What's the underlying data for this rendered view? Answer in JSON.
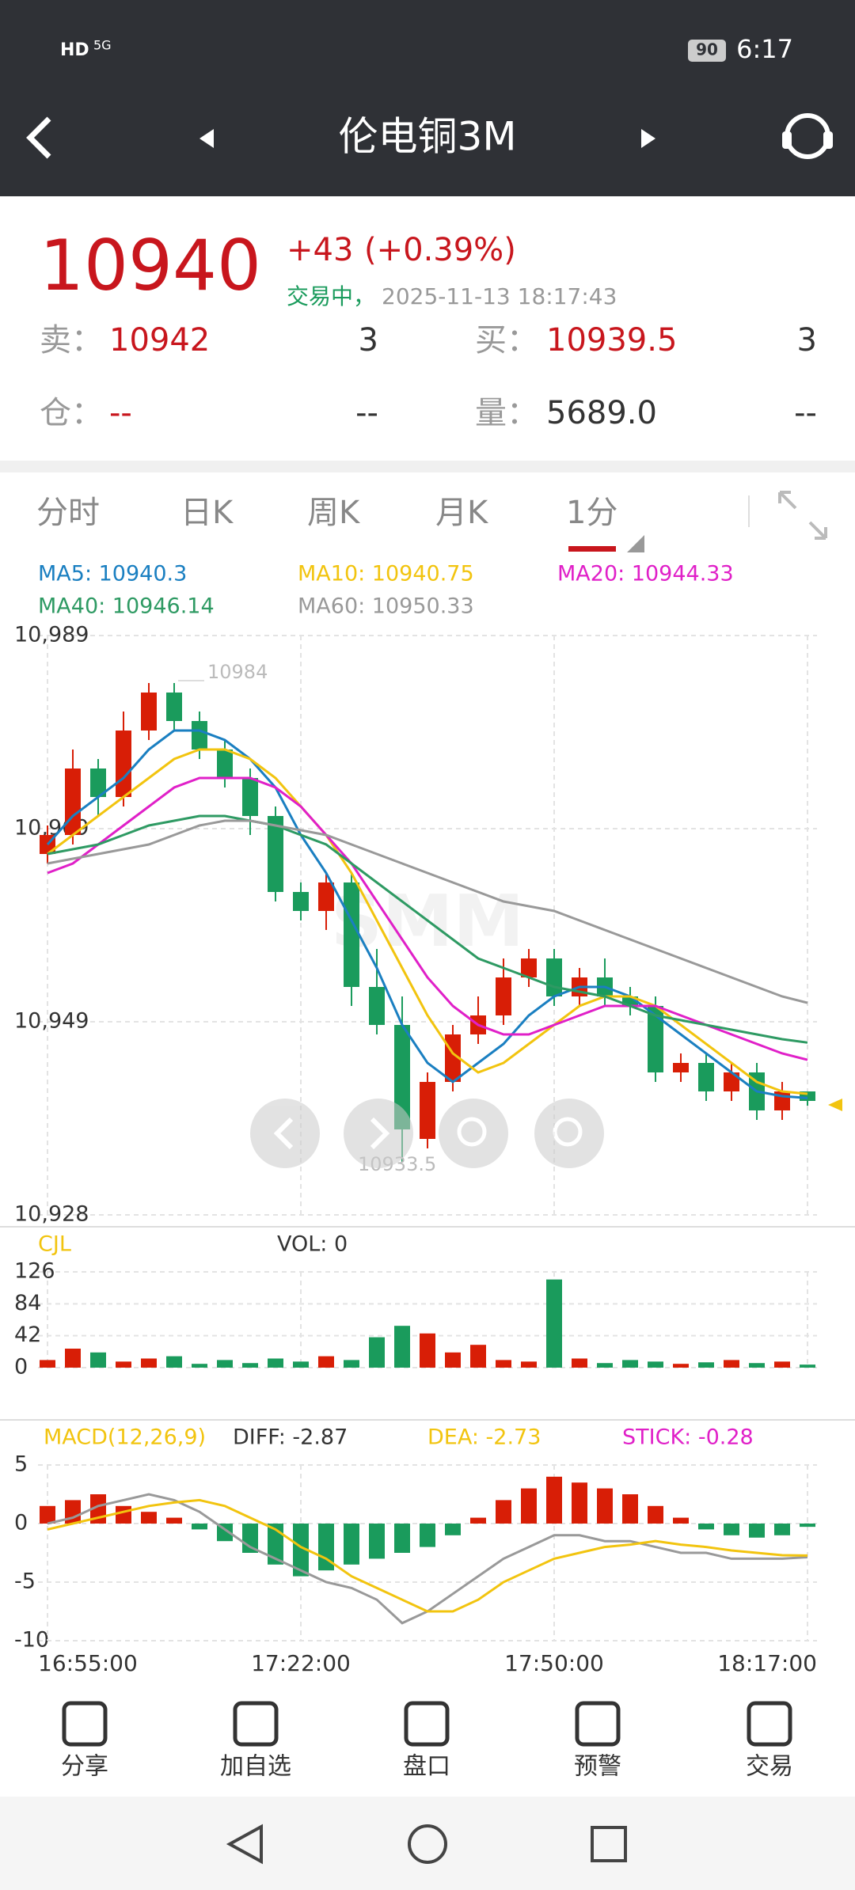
{
  "status_bar": {
    "network": "HD",
    "signal": "5G",
    "battery": "90",
    "time": "6:17"
  },
  "header": {
    "title": "伦电铜3M"
  },
  "quote": {
    "price": "10940",
    "change": "+43",
    "change_pct": "(+0.39%)",
    "status": "交易中，",
    "timestamp": "2025-11-13 18:17:43",
    "rows": [
      [
        "卖：",
        "10942",
        "3",
        "买：",
        "10939.5",
        "3"
      ],
      [
        "仓：",
        "--",
        "--",
        "量：",
        "5689.0",
        "--"
      ]
    ]
  },
  "tabs": [
    "分时",
    "日K",
    "周K",
    "月K",
    "1分"
  ],
  "watermark": "SMM",
  "chart_data": [
    {
      "type": "candlestick",
      "categories": [
        "16:55:00",
        null,
        null,
        null,
        null,
        null,
        null,
        null,
        null,
        null,
        "17:22:00",
        null,
        null,
        null,
        null,
        null,
        null,
        null,
        null,
        null,
        "17:50:00",
        null,
        null,
        null,
        null,
        null,
        null,
        null,
        null,
        null,
        "18:17:00"
      ],
      "open": [
        10966,
        10968,
        10975,
        10972,
        10979,
        10983,
        10980,
        10977,
        10974,
        10970,
        10962,
        10960,
        10963,
        10952,
        10948,
        10936,
        10942,
        10947,
        10949,
        10953,
        10955,
        10951,
        10953,
        10951,
        10950,
        10943,
        10944,
        10941,
        10943,
        10939,
        10941
      ],
      "high": [
        10969,
        10977,
        10976,
        10981,
        10984,
        10984,
        10981,
        10978,
        10975,
        10971,
        10963,
        10964,
        10964,
        10956,
        10951,
        10943,
        10948,
        10951,
        10955,
        10956,
        10956,
        10954,
        10955,
        10952,
        10951,
        10945,
        10945,
        10944,
        10944,
        10942,
        10941
      ],
      "low": [
        10965,
        10967,
        10970,
        10971,
        10978,
        10979,
        10976,
        10973,
        10968,
        10961,
        10959,
        10958,
        10950,
        10947,
        10933.5,
        10935,
        10941,
        10946,
        10948,
        10952,
        10950,
        10950,
        10950,
        10949,
        10942,
        10942,
        10940,
        10940,
        10938,
        10938,
        10939.5
      ],
      "close": [
        10968,
        10975,
        10972,
        10979,
        10983,
        10980,
        10977,
        10974,
        10970,
        10962,
        10960,
        10963,
        10952,
        10948,
        10937,
        10942,
        10947,
        10949,
        10953,
        10955,
        10951,
        10953,
        10951,
        10950,
        10943,
        10944,
        10941,
        10943,
        10939,
        10941,
        10940
      ],
      "up_color": "#d81e06",
      "down_color": "#1a9b5c",
      "series": [
        {
          "name": "MA5: 10940.3",
          "color": "#1a7fc1",
          "values": [
            10967,
            10970,
            10972,
            10974,
            10977,
            10979,
            10979,
            10978,
            10976,
            10973,
            10968,
            10964,
            10959,
            10954,
            10948,
            10944,
            10942,
            10944,
            10946,
            10949,
            10951,
            10952,
            10952,
            10951,
            10949,
            10947,
            10945,
            10943,
            10941,
            10940.5,
            10940.3
          ]
        },
        {
          "name": "MA10: 10940.75",
          "color": "#f2c40f",
          "values": [
            10966,
            10968,
            10970,
            10972,
            10974,
            10976,
            10977,
            10977,
            10976,
            10974,
            10971,
            10968,
            10964,
            10959,
            10954,
            10949,
            10945,
            10943,
            10944,
            10946,
            10948,
            10950,
            10951,
            10951,
            10950,
            10948,
            10946,
            10944,
            10942,
            10941,
            10940.75
          ]
        },
        {
          "name": "MA20: 10944.33",
          "color": "#e020c8",
          "values": [
            10964,
            10965,
            10967,
            10969,
            10971,
            10973,
            10974,
            10974,
            10974,
            10973,
            10971,
            10968,
            10965,
            10961,
            10957,
            10953,
            10950,
            10948,
            10947,
            10947,
            10948,
            10949,
            10950,
            10950,
            10950,
            10949,
            10948,
            10947,
            10946,
            10945,
            10944.33
          ]
        },
        {
          "name": "MA40: 10946.14",
          "color": "#2e9a63",
          "values": [
            10966,
            10966.5,
            10967,
            10968,
            10969,
            10969.5,
            10970,
            10970,
            10969.5,
            10969,
            10968,
            10967,
            10965,
            10963,
            10961,
            10959,
            10957,
            10955,
            10954,
            10953,
            10952,
            10951.5,
            10951,
            10950,
            10949,
            10948.5,
            10948,
            10947.5,
            10947,
            10946.5,
            10946.14
          ]
        },
        {
          "name": "MA60: 10950.33",
          "color": "#999999",
          "values": [
            10965,
            10965.5,
            10966,
            10966.5,
            10967,
            10968,
            10969,
            10969.5,
            10969.5,
            10969,
            10968.5,
            10968,
            10967,
            10966,
            10965,
            10964,
            10963,
            10962,
            10961,
            10960.5,
            10960,
            10959,
            10958,
            10957,
            10956,
            10955,
            10954,
            10953,
            10952,
            10951,
            10950.33
          ]
        }
      ],
      "ylim": [
        10928,
        10989
      ],
      "yticks": [
        {
          "value": 10989,
          "label": "10,989"
        },
        {
          "value": 10968.67,
          "label": "10,969"
        },
        {
          "value": 10948.33,
          "label": "10,949"
        },
        {
          "value": 10928,
          "label": "10,928"
        }
      ],
      "annotations": [
        "10984",
        "10933.5"
      ],
      "grid": true
    },
    {
      "type": "bar",
      "title": "CJL",
      "subtitle": "VOL: 0",
      "values": [
        10,
        25,
        20,
        8,
        12,
        15,
        5,
        10,
        6,
        12,
        8,
        15,
        10,
        40,
        55,
        45,
        20,
        30,
        10,
        8,
        116,
        12,
        6,
        10,
        8,
        5,
        7,
        10,
        6,
        8,
        4
      ],
      "ylim": [
        0,
        126
      ],
      "yticks": [
        0,
        42,
        84,
        126
      ],
      "grid": true
    },
    {
      "type": "macd",
      "title": "MACD(12,26,9)",
      "up_color": "#d81e06",
      "down_color": "#1a9b5c",
      "series": [
        {
          "name": "DIFF: -2.87",
          "color": "#999999",
          "values": [
            0,
            0.5,
            1.5,
            2,
            2.5,
            2,
            1,
            -0.5,
            -2,
            -3,
            -4,
            -5,
            -5.5,
            -6.5,
            -8.5,
            -7.5,
            -6,
            -4.5,
            -3,
            -2,
            -1,
            -1,
            -1.5,
            -1.5,
            -2,
            -2.5,
            -2.5,
            -3,
            -3,
            -3,
            -2.87
          ]
        },
        {
          "name": "DEA: -2.73",
          "color": "#f2c40f",
          "values": [
            -0.5,
            0,
            0.5,
            1,
            1.5,
            1.8,
            2,
            1.5,
            0.5,
            -0.5,
            -2,
            -3,
            -4.5,
            -5.5,
            -6.5,
            -7.5,
            -7.5,
            -6.5,
            -5,
            -4,
            -3,
            -2.5,
            -2,
            -1.8,
            -1.5,
            -1.8,
            -2,
            -2.3,
            -2.5,
            -2.7,
            -2.73
          ]
        },
        {
          "name": "STICK: -0.28",
          "color": "#e020c8",
          "type": "bar",
          "values": [
            1.5,
            2,
            2.5,
            1.5,
            1,
            0.5,
            -0.5,
            -1.5,
            -2.5,
            -3.5,
            -4.5,
            -4,
            -3.5,
            -3,
            -2.5,
            -2,
            -1,
            0.5,
            2,
            3,
            4,
            3.5,
            3,
            2.5,
            1.5,
            0.5,
            -0.5,
            -1,
            -1.2,
            -1,
            -0.28
          ]
        }
      ],
      "ylim": [
        -10,
        5
      ],
      "yticks": [
        5,
        0,
        -5,
        -10
      ],
      "grid": true
    }
  ],
  "toolbar": [
    "分享",
    "加自选",
    "盘口",
    "预警",
    "交易"
  ]
}
